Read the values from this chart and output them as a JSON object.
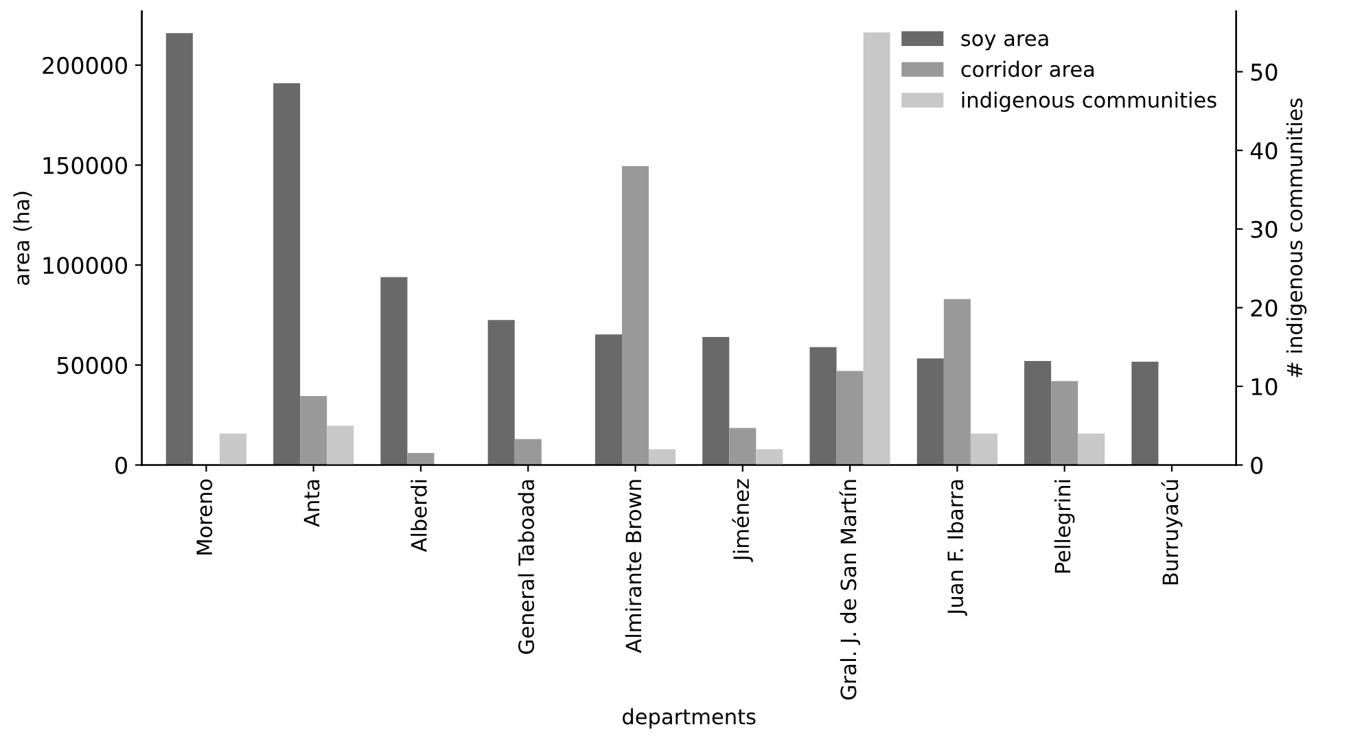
{
  "chart_data": {
    "type": "bar",
    "xlabel": "departments",
    "ylabel": "area (ha)",
    "y2label": "# indigenous communities",
    "categories": [
      "Moreno",
      "Anta",
      "Alberdi",
      "General Taboada",
      "Almirante Brown",
      "Jiménez",
      "Gral. J. de San Martín",
      "Juan F. Ibarra",
      "Pellegrini",
      "Burruyacú"
    ],
    "series": [
      {
        "name": "soy area",
        "color": "#696969",
        "values": [
          216000,
          191000,
          94000,
          72500,
          65300,
          64000,
          59000,
          53300,
          52000,
          51700
        ]
      },
      {
        "name": "corridor area",
        "color": "#999999",
        "values": [
          0,
          34500,
          6000,
          13000,
          149500,
          18500,
          47000,
          83000,
          42000,
          0
        ]
      },
      {
        "name": "indigenous communities",
        "color": "#c8c8c8",
        "axis": "y2",
        "values": [
          4,
          5,
          0,
          0,
          2,
          2,
          55,
          4,
          4,
          0
        ]
      }
    ],
    "ylim": [
      0,
      227000
    ],
    "yticks": [
      0,
      50000,
      100000,
      150000,
      200000
    ],
    "y2lim": [
      0,
      57.7
    ],
    "y2ticks": [
      0,
      10,
      20,
      30,
      40,
      50
    ],
    "legend": "top right",
    "grid": false
  }
}
